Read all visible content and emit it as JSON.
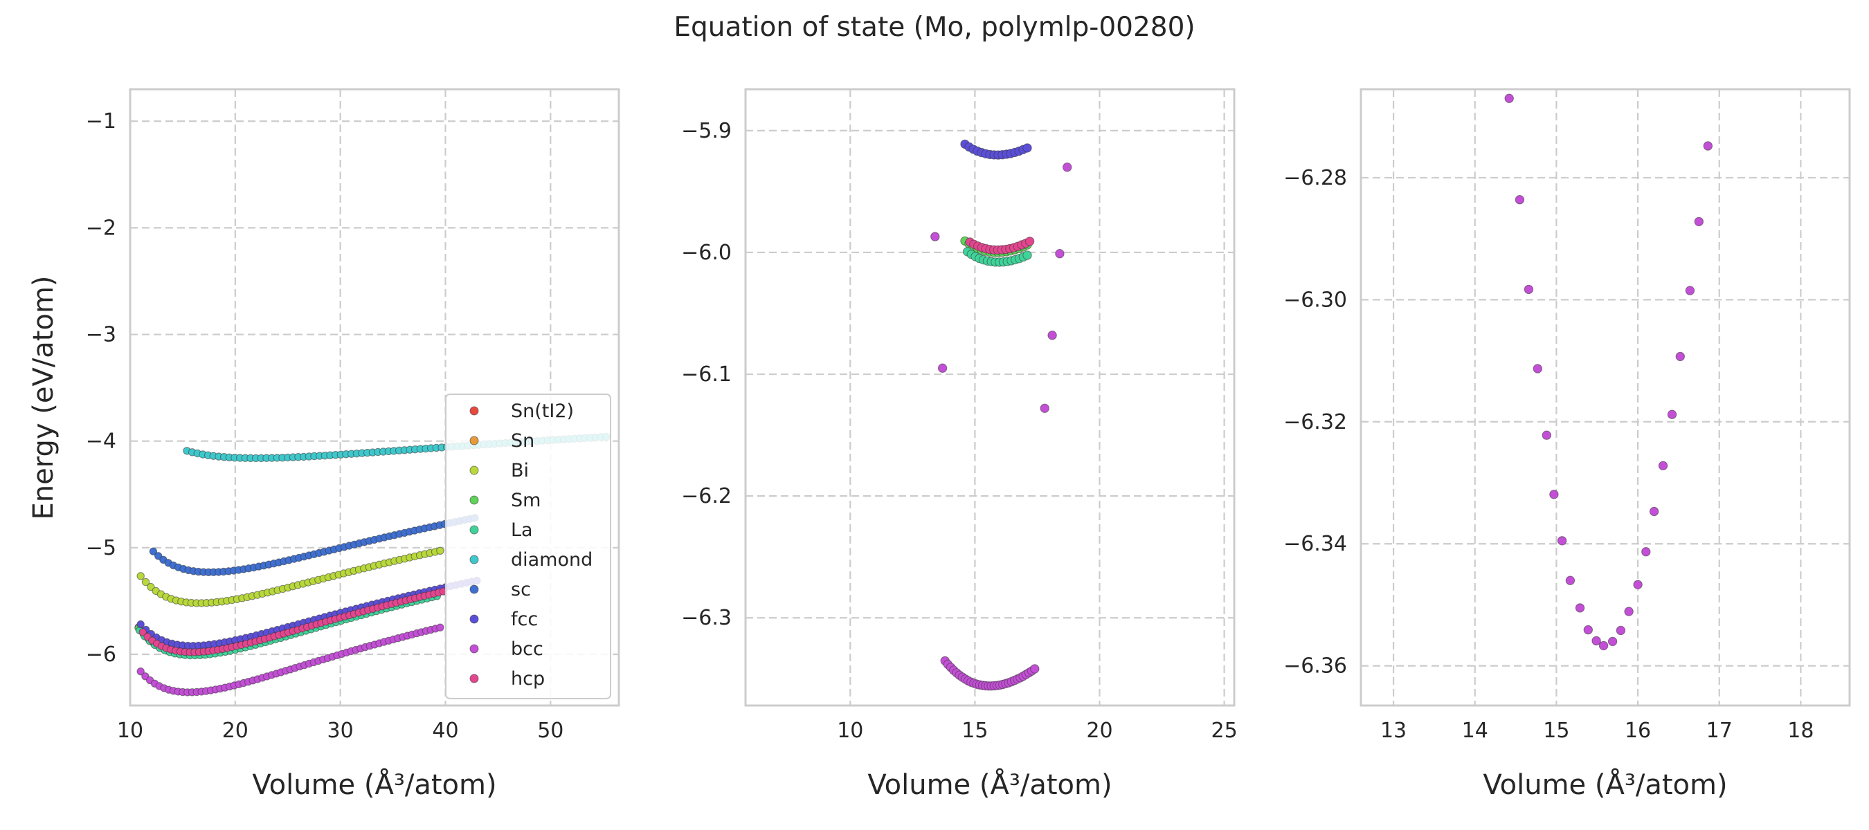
{
  "figure": {
    "title": "Equation of state (Mo, polymlp-00280)"
  },
  "colors": {
    "Sn(tI2)": "#e8493f",
    "Sn": "#e69b3a",
    "Bi": "#b8d83b",
    "Sm": "#5fd35a",
    "La": "#3fd39a",
    "diamond": "#3fc8cc",
    "sc": "#3f6fd0",
    "fcc": "#5b4fd8",
    "bcc": "#c34fd6",
    "hcp": "#e3468f"
  },
  "chart_data": [
    {
      "type": "scatter",
      "xlabel": "Volume (Å³/atom)",
      "ylabel": "Energy (eV/atom)",
      "xlim": [
        10,
        56.5
      ],
      "ylim": [
        -6.48,
        -0.7
      ],
      "xticks": [
        10,
        20,
        30,
        40,
        50
      ],
      "yticks": [
        -6,
        -5,
        -4,
        -3,
        -2,
        -1
      ],
      "grid": true,
      "legend": "lower-right",
      "legend_entries": [
        "Sn(tI2)",
        "Sn",
        "Bi",
        "Sm",
        "La",
        "diamond",
        "sc",
        "fcc",
        "bcc",
        "hcp"
      ],
      "series": [
        {
          "name": "Sn(tI2)",
          "curve": {
            "v0": 15.9,
            "e0": -5.98,
            "b": 2.7,
            "vmin": 10.8,
            "vmax": 38.8,
            "n": 60
          }
        },
        {
          "name": "Sn",
          "curve": {
            "v0": 15.9,
            "e0": -5.99,
            "b": 2.7,
            "vmin": 10.9,
            "vmax": 38.9,
            "n": 60
          }
        },
        {
          "name": "Bi",
          "curve": {
            "v0": 16.6,
            "e0": -5.52,
            "b": 2.55,
            "vmin": 11.0,
            "vmax": 39.5,
            "n": 60
          }
        },
        {
          "name": "Sm",
          "curve": {
            "v0": 16.0,
            "e0": -6.0,
            "b": 2.75,
            "vmin": 10.8,
            "vmax": 39.0,
            "n": 60
          }
        },
        {
          "name": "La",
          "curve": {
            "v0": 16.0,
            "e0": -6.01,
            "b": 2.75,
            "vmin": 10.9,
            "vmax": 39.2,
            "n": 60
          }
        },
        {
          "name": "diamond",
          "curve": {
            "v0": 22.0,
            "e0": -4.16,
            "b": 0.95,
            "vmin": 15.4,
            "vmax": 55.3,
            "n": 80
          }
        },
        {
          "name": "sc",
          "curve": {
            "v0": 17.6,
            "e0": -5.23,
            "b": 2.55,
            "vmin": 12.2,
            "vmax": 42.8,
            "n": 65
          }
        },
        {
          "name": "fcc",
          "curve": {
            "v0": 15.9,
            "e0": -5.92,
            "b": 2.6,
            "vmin": 11.0,
            "vmax": 43.0,
            "n": 65
          }
        },
        {
          "name": "bcc",
          "curve": {
            "v0": 15.6,
            "e0": -6.356,
            "b": 2.85,
            "vmin": 11.0,
            "vmax": 39.5,
            "n": 65
          }
        },
        {
          "name": "hcp",
          "curve": {
            "v0": 15.9,
            "e0": -5.98,
            "b": 2.72,
            "vmin": 11.2,
            "vmax": 39.8,
            "n": 65
          }
        }
      ]
    },
    {
      "type": "scatter",
      "xlabel": "Volume (Å³/atom)",
      "ylabel": "",
      "xlim": [
        5.8,
        25.4
      ],
      "ylim": [
        -6.372,
        -5.866
      ],
      "xticks": [
        10,
        15,
        20,
        25
      ],
      "yticks": [
        -6.3,
        -6.2,
        -6.1,
        -6.0,
        -5.9
      ],
      "yticklabels": [
        "−6.3",
        "−6.2",
        "−6.1",
        "−6.0",
        "−5.9"
      ],
      "grid": true,
      "series": [
        {
          "name": "fcc",
          "curve": {
            "v0": 15.9,
            "e0": -5.92,
            "b": 2.6,
            "vmin": 14.6,
            "vmax": 17.1,
            "n": 16
          }
        },
        {
          "name": "Sm",
          "curve": {
            "v0": 15.9,
            "e0": -6.0,
            "b": 2.75,
            "vmin": 14.6,
            "vmax": 17.1,
            "n": 16
          }
        },
        {
          "name": "La",
          "curve": {
            "v0": 15.95,
            "e0": -6.008,
            "b": 2.75,
            "vmin": 14.7,
            "vmax": 17.1,
            "n": 16
          }
        },
        {
          "name": "hcp",
          "curve": {
            "v0": 15.9,
            "e0": -5.998,
            "b": 2.72,
            "vmin": 14.8,
            "vmax": 17.2,
            "n": 16
          }
        },
        {
          "name": "bcc",
          "curve": {
            "v0": 15.6,
            "e0": -6.356,
            "b": 2.85,
            "vmin": 13.8,
            "vmax": 17.4,
            "n": 32
          }
        },
        {
          "name": "bcc",
          "points": [
            [
              13.4,
              -5.987
            ],
            [
              13.7,
              -6.095
            ],
            [
              17.8,
              -6.128
            ],
            [
              18.1,
              -6.068
            ],
            [
              18.4,
              -6.001
            ],
            [
              18.7,
              -5.93
            ]
          ]
        }
      ]
    },
    {
      "type": "scatter",
      "xlabel": "Volume (Å³/atom)",
      "ylabel": "",
      "xlim": [
        12.6,
        18.6
      ],
      "ylim": [
        -6.3665,
        -6.2655
      ],
      "xticks": [
        13,
        14,
        15,
        16,
        17,
        18
      ],
      "yticks": [
        -6.36,
        -6.34,
        -6.32,
        -6.3,
        -6.28
      ],
      "yticklabels": [
        "−6.36",
        "−6.34",
        "−6.32",
        "−6.30",
        "−6.28"
      ],
      "grid": true,
      "series": [
        {
          "name": "bcc",
          "points": [
            [
              14.42,
              -6.267
            ],
            [
              14.55,
              -6.2836
            ],
            [
              14.66,
              -6.2983
            ],
            [
              14.77,
              -6.3113
            ],
            [
              14.88,
              -6.3222
            ],
            [
              14.97,
              -6.3319
            ],
            [
              15.07,
              -6.3395
            ],
            [
              15.17,
              -6.346
            ],
            [
              15.29,
              -6.3505
            ],
            [
              15.39,
              -6.3541
            ],
            [
              15.49,
              -6.3559
            ],
            [
              15.58,
              -6.3567
            ],
            [
              15.69,
              -6.356
            ],
            [
              15.79,
              -6.3542
            ],
            [
              15.89,
              -6.3511
            ],
            [
              16.0,
              -6.3467
            ],
            [
              16.1,
              -6.3413
            ],
            [
              16.2,
              -6.3347
            ],
            [
              16.31,
              -6.3272
            ],
            [
              16.42,
              -6.3188
            ],
            [
              16.52,
              -6.3093
            ],
            [
              16.64,
              -6.2985
            ],
            [
              16.75,
              -6.2872
            ],
            [
              16.86,
              -6.2748
            ]
          ]
        }
      ]
    }
  ]
}
